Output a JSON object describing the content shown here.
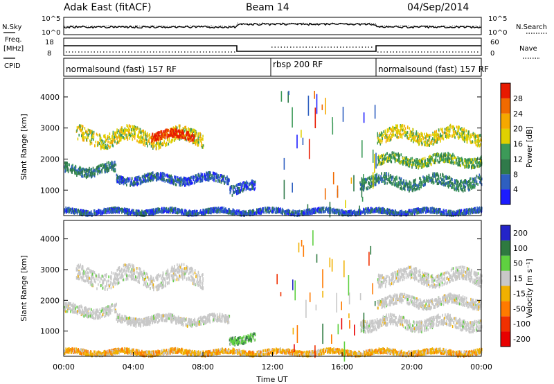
{
  "header": {
    "station": "Adak East (fitACF)",
    "beam": "Beam 14",
    "date": "04/Sep/2014"
  },
  "left_labels": {
    "nsky": "N.Sky",
    "freq_line1": "Freq.",
    "freq_line2": "[MHz]",
    "cpid": "CPID"
  },
  "right_labels": {
    "nsearch": "N.Search",
    "nave": "Nave"
  },
  "noise_panel": {
    "left_ticks": [
      "10^5",
      "10^0"
    ],
    "right_ticks": [
      "10^5",
      "10^0"
    ]
  },
  "freq_panel": {
    "left_ticks": [
      "18",
      "8"
    ],
    "right_ticks": [
      "60",
      "0"
    ]
  },
  "cpid_panel": {
    "segments": [
      {
        "label": "normalsound (fast) 157 RF",
        "start": 0,
        "end": 12
      },
      {
        "label": "rbsp 200 RF",
        "start": 12,
        "end": 18
      },
      {
        "label": "normalsound (fast) 157 RF",
        "start": 18,
        "end": 24
      }
    ]
  },
  "colors": {
    "power": [
      "#1c1cff",
      "#2e5fc0",
      "#2f7a4a",
      "#3c9a58",
      "#e0d000",
      "#f5a800",
      "#f06a00",
      "#e81a00"
    ],
    "velocity": [
      "#2424c8",
      "#2e7a40",
      "#5fd040",
      "#c8c8c8",
      "#f0b000",
      "#ff7a00",
      "#f03000",
      "#e80000"
    ]
  },
  "chart_data": [
    {
      "type": "heatmap",
      "panel": "power",
      "ylabel": "Slant Range [km]",
      "ylim": [
        180,
        4600
      ],
      "xlim": [
        0,
        24
      ],
      "y_ticks": [
        1000,
        2000,
        3000,
        4000
      ],
      "colorbar": {
        "label": "Power [dB]",
        "ticks": [
          "4",
          "8",
          "12",
          "16",
          "20",
          "24",
          "28"
        ]
      },
      "regions": [
        {
          "start": 0.7,
          "end": 8.0,
          "center": 2750,
          "width": 450,
          "level": 4
        },
        {
          "start": 5.0,
          "end": 7.5,
          "center": 2800,
          "width": 250,
          "level": 7
        },
        {
          "start": 0.0,
          "end": 3.0,
          "center": 1700,
          "width": 300,
          "level": 2
        },
        {
          "start": 3.0,
          "end": 9.5,
          "center": 1400,
          "width": 250,
          "level": 1
        },
        {
          "start": 9.5,
          "end": 11.0,
          "center": 1100,
          "width": 300,
          "level": 1
        },
        {
          "start": 18.0,
          "end": 24.0,
          "center": 2800,
          "width": 400,
          "level": 4
        },
        {
          "start": 18.0,
          "end": 24.0,
          "center": 2000,
          "width": 300,
          "level": 3
        },
        {
          "start": 17.0,
          "end": 24.0,
          "center": 1300,
          "width": 350,
          "level": 2
        },
        {
          "start": 0.0,
          "end": 24.0,
          "center": 350,
          "width": 150,
          "level": 1
        }
      ]
    },
    {
      "type": "heatmap",
      "panel": "velocity",
      "ylabel": "Slant Range [km]",
      "ylim": [
        180,
        4600
      ],
      "xlim": [
        0,
        24
      ],
      "y_ticks": [
        1000,
        2000,
        3000,
        4000
      ],
      "x_ticks": [
        "00:00",
        "04:00",
        "08:00",
        "12:00",
        "16:00",
        "20:00",
        "00:00"
      ],
      "xlabel": "Time UT",
      "colorbar": {
        "label": "Velocity [m s⁻¹]",
        "ticks": [
          "200",
          "100",
          "50",
          "15",
          "-15",
          "-50",
          "-100",
          "-200"
        ]
      },
      "regions": [
        {
          "start": 0.7,
          "end": 8.0,
          "center": 2800,
          "width": 500,
          "level": 3
        },
        {
          "start": 0.0,
          "end": 3.0,
          "center": 1700,
          "width": 300,
          "level": 3
        },
        {
          "start": 3.0,
          "end": 9.5,
          "center": 1400,
          "width": 250,
          "level": 3
        },
        {
          "start": 9.5,
          "end": 11.0,
          "center": 800,
          "width": 250,
          "level": 2
        },
        {
          "start": 18.0,
          "end": 24.0,
          "center": 2800,
          "width": 400,
          "level": 3
        },
        {
          "start": 18.0,
          "end": 24.0,
          "center": 2000,
          "width": 300,
          "level": 3
        },
        {
          "start": 17.0,
          "end": 24.0,
          "center": 1300,
          "width": 350,
          "level": 3
        },
        {
          "start": 0.0,
          "end": 24.0,
          "center": 350,
          "width": 150,
          "level": 4
        }
      ]
    }
  ]
}
